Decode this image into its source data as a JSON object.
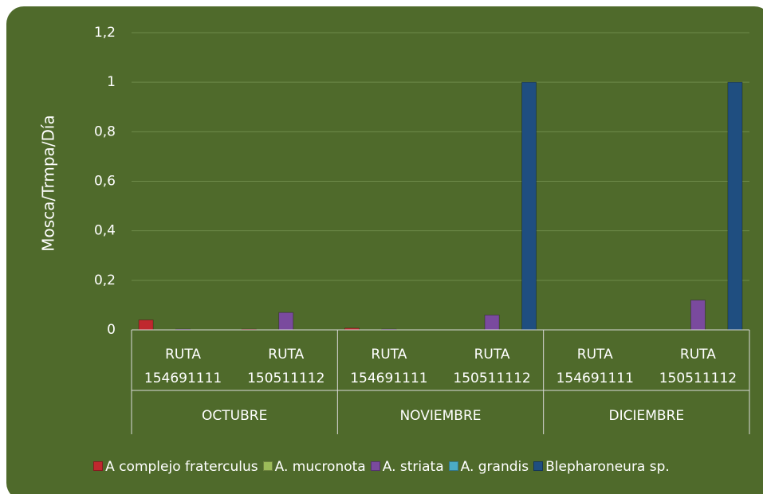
{
  "chart_data": {
    "type": "bar",
    "y_label": "Mosca/Trmpa/Día",
    "categories": [
      "RUTA 154691111",
      "RUTA 150511112",
      "RUTA 154691111",
      "RUTA 150511112",
      "RUTA 154691111",
      "RUTA 150511112"
    ],
    "group_labels": [
      "OCTUBRE",
      "NOVIEMBRE",
      "DICIEMBRE"
    ],
    "series": [
      {
        "name": "A complejo fraterculus",
        "color": "#c0282e",
        "values": [
          0.04,
          0.003,
          0.007,
          0,
          0,
          0
        ]
      },
      {
        "name": "A. mucronota",
        "color": "#9bbb59",
        "values": [
          0,
          0,
          0,
          0,
          0,
          0
        ]
      },
      {
        "name": "A. striata",
        "color": "#7a4a9e",
        "values": [
          0.003,
          0.07,
          0.003,
          0.06,
          0,
          0.12
        ]
      },
      {
        "name": "A. grandis",
        "color": "#4bacc6",
        "values": [
          0,
          0,
          0,
          0,
          0,
          0
        ]
      },
      {
        "name": "Blepharoneura sp.",
        "color": "#1f4e80",
        "values": [
          0,
          0,
          0,
          1,
          0,
          1
        ]
      }
    ],
    "ylim": [
      0,
      1.2
    ],
    "yticks": [
      0,
      {
        "value": 0.2,
        "label": "0,2"
      },
      {
        "value": 0.4,
        "label": "0,4"
      },
      {
        "value": 0.6,
        "label": "0,6"
      },
      {
        "value": 0.8,
        "label": "0,8"
      },
      1,
      {
        "value": 1.2,
        "label": "1,2"
      }
    ],
    "grid": true,
    "legend": "bottom"
  }
}
